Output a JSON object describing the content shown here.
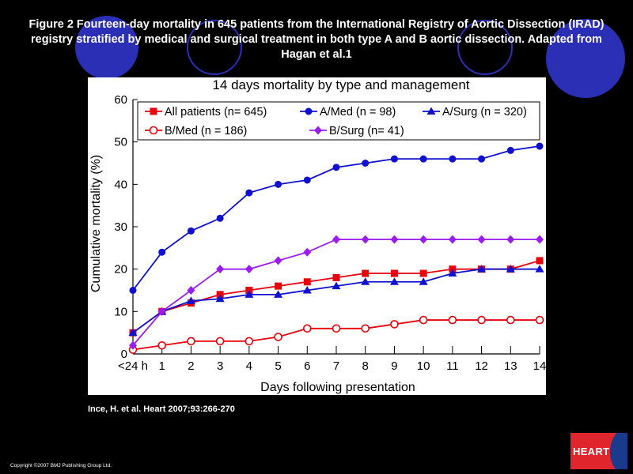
{
  "caption": "Figure 2 Fourteen-day mortality in 645 patients from the International Registry of Aortic Dissection (IRAD) registry stratified by medical and surgical treatment in both type A and B aortic dissection. Adapted from Hagan et al.1",
  "source": "Ince, H. et al. Heart 2007;93:266-270",
  "copyright": "Copyright ©2007 BMJ Publishing Group Ltd.",
  "logo_text": "HEART",
  "colors": {
    "background": "#000000",
    "decor": "#2b2fb5",
    "red": "#e8000b",
    "blue": "#1010d0",
    "purple": "#9b1cf0",
    "logo": "#e0262c"
  },
  "chart_data": {
    "type": "line",
    "title": "14 days mortality by type and management",
    "xlabel": "Days following presentation",
    "ylabel": "Cumulative mortality (%)",
    "categories": [
      "<24 h",
      "1",
      "2",
      "3",
      "4",
      "5",
      "6",
      "7",
      "8",
      "9",
      "10",
      "11",
      "12",
      "13",
      "14"
    ],
    "ylim": [
      0,
      60
    ],
    "yticks": [
      0,
      10,
      20,
      30,
      40,
      50,
      60
    ],
    "grid": false,
    "legend_position": "top",
    "series": [
      {
        "name": "All patients (n= 645)",
        "color": "#e8000b",
        "marker": "square",
        "values": [
          5,
          10,
          12,
          14,
          15,
          16,
          17,
          18,
          19,
          19,
          19,
          20,
          20,
          20,
          22
        ]
      },
      {
        "name": "A/Med (n  = 98)",
        "color": "#1010d0",
        "marker": "circle",
        "values": [
          15,
          24,
          29,
          32,
          38,
          40,
          41,
          44,
          45,
          46,
          46,
          46,
          46,
          48,
          49
        ]
      },
      {
        "name": "A/Surg (n = 320)",
        "color": "#1010d0",
        "marker": "triangle",
        "values": [
          5,
          10,
          12.5,
          13,
          14,
          14,
          15,
          16,
          17,
          17,
          17,
          19,
          20,
          20,
          20
        ]
      },
      {
        "name": "B/Med (n = 186)",
        "color": "#e8000b",
        "marker": "circle-open",
        "values": [
          1,
          2,
          3,
          3,
          3,
          4,
          6,
          6,
          6,
          7,
          8,
          8,
          8,
          8,
          8
        ]
      },
      {
        "name": "B/Surg (n= 41)",
        "color": "#9b1cf0",
        "marker": "diamond",
        "values": [
          2,
          10,
          15,
          20,
          20,
          22,
          24,
          27,
          27,
          27,
          27,
          27,
          27,
          27,
          27
        ]
      }
    ]
  }
}
